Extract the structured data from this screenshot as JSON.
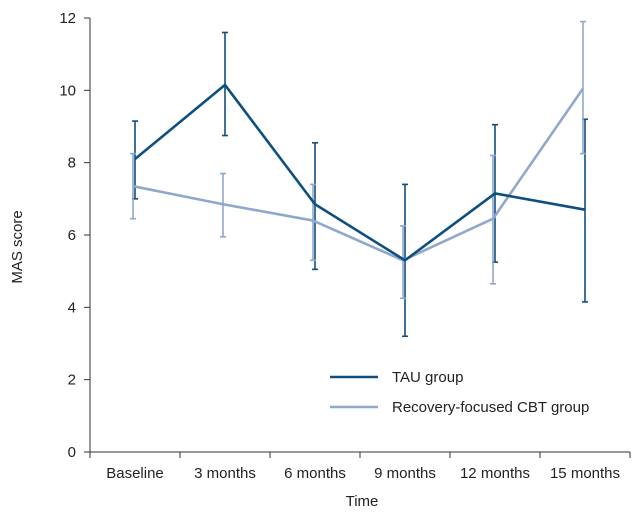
{
  "chart_data": {
    "type": "line",
    "title": "",
    "xlabel": "Time",
    "ylabel": "MAS score",
    "categories": [
      "Baseline",
      "3 months",
      "6 months",
      "9 months",
      "12 months",
      "15 months"
    ],
    "ylim": [
      0,
      12
    ],
    "yticks": [
      "0",
      "2",
      "4",
      "6",
      "8",
      "10",
      "12"
    ],
    "grid": false,
    "legend_position": "bottom-right",
    "series": [
      {
        "name": "TAU group",
        "color": "#0e4f7f",
        "values": [
          8.1,
          10.15,
          6.85,
          5.3,
          7.15,
          6.7
        ],
        "err_low": [
          7.0,
          8.75,
          5.05,
          3.2,
          5.25,
          4.15
        ],
        "err_high": [
          9.15,
          11.6,
          8.55,
          7.4,
          9.05,
          9.2
        ]
      },
      {
        "name": "Recovery-focused CBT group",
        "color": "#8fa8cc",
        "values": [
          7.35,
          6.85,
          6.4,
          5.3,
          6.45,
          10.05
        ],
        "err_low": [
          6.45,
          5.95,
          5.3,
          4.25,
          4.65,
          8.25
        ],
        "err_high": [
          8.25,
          7.7,
          7.4,
          6.25,
          8.2,
          11.9
        ]
      }
    ]
  }
}
